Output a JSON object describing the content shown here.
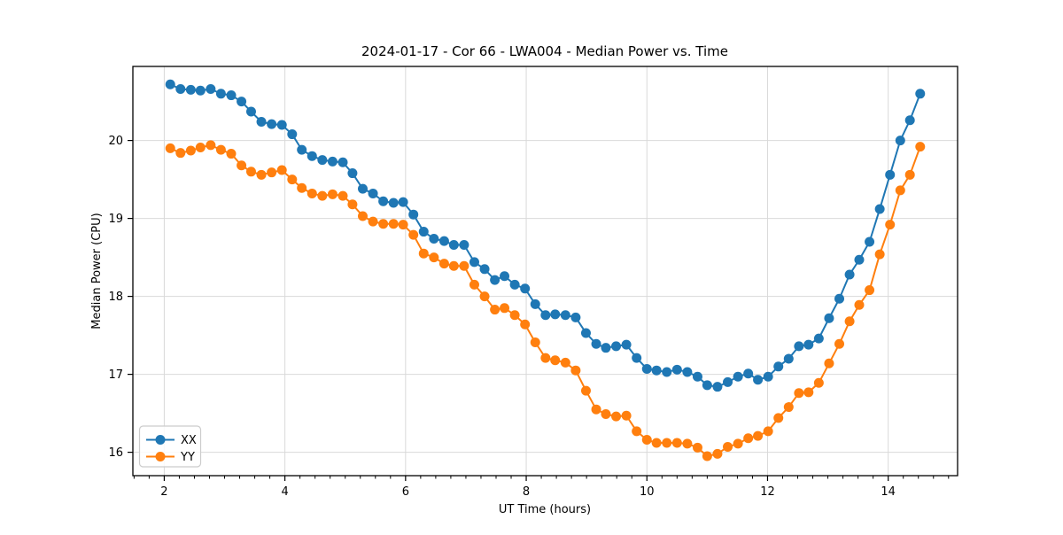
{
  "page": {
    "background": "#ffffff"
  },
  "chart_data": {
    "type": "line",
    "title": "2024-01-17 - Cor 66 - LWA004 - Median Power vs. Time",
    "xlabel": "UT Time (hours)",
    "ylabel": "Median Power (CPU)",
    "xlim": [
      1.48,
      15.15
    ],
    "ylim": [
      15.7,
      20.95
    ],
    "x_ticks": [
      2,
      4,
      6,
      8,
      10,
      12,
      14
    ],
    "x_minor_tick_step": 0.25,
    "y_ticks": [
      16,
      17,
      18,
      19,
      20
    ],
    "grid": true,
    "legend_position": "lower left",
    "marker": "circle",
    "x": [
      2.1,
      2.27,
      2.44,
      2.6,
      2.77,
      2.94,
      3.11,
      3.28,
      3.44,
      3.61,
      3.78,
      3.95,
      4.12,
      4.28,
      4.45,
      4.62,
      4.79,
      4.96,
      5.12,
      5.29,
      5.46,
      5.63,
      5.8,
      5.96,
      6.13,
      6.3,
      6.47,
      6.64,
      6.8,
      6.97,
      7.14,
      7.31,
      7.48,
      7.64,
      7.81,
      7.98,
      8.15,
      8.32,
      8.48,
      8.65,
      8.82,
      8.99,
      9.16,
      9.32,
      9.49,
      9.66,
      9.83,
      10.0,
      10.16,
      10.33,
      10.5,
      10.67,
      10.84,
      11.0,
      11.17,
      11.34,
      11.51,
      11.68,
      11.84,
      12.01,
      12.18,
      12.35,
      12.52,
      12.68,
      12.85,
      13.02,
      13.19,
      13.36,
      13.52,
      13.69,
      13.86,
      14.03,
      14.2,
      14.36,
      14.53
    ],
    "series": [
      {
        "name": "XX",
        "color": "#1f77b4",
        "values": [
          20.72,
          20.66,
          20.65,
          20.64,
          20.66,
          20.6,
          20.58,
          20.5,
          20.37,
          20.24,
          20.21,
          20.2,
          20.08,
          19.88,
          19.8,
          19.75,
          19.73,
          19.72,
          19.58,
          19.38,
          19.32,
          19.22,
          19.2,
          19.21,
          19.05,
          18.83,
          18.74,
          18.71,
          18.66,
          18.66,
          18.44,
          18.35,
          18.21,
          18.26,
          18.15,
          18.1,
          17.9,
          17.76,
          17.77,
          17.76,
          17.73,
          17.53,
          17.39,
          17.34,
          17.36,
          17.38,
          17.21,
          17.07,
          17.05,
          17.03,
          17.06,
          17.03,
          16.97,
          16.86,
          16.84,
          16.9,
          16.97,
          17.01,
          16.93,
          16.97,
          17.1,
          17.2,
          17.36,
          17.38,
          17.46,
          17.72,
          17.97,
          18.28,
          18.47,
          18.7,
          19.12,
          19.56,
          20.0,
          20.26,
          20.6
        ]
      },
      {
        "name": "YY",
        "color": "#ff7f0e",
        "values": [
          19.9,
          19.84,
          19.87,
          19.91,
          19.94,
          19.88,
          19.83,
          19.68,
          19.6,
          19.56,
          19.59,
          19.62,
          19.5,
          19.39,
          19.32,
          19.29,
          19.31,
          19.29,
          19.18,
          19.03,
          18.96,
          18.93,
          18.93,
          18.92,
          18.79,
          18.55,
          18.5,
          18.42,
          18.39,
          18.39,
          18.15,
          18.0,
          17.83,
          17.85,
          17.76,
          17.64,
          17.41,
          17.21,
          17.18,
          17.15,
          17.05,
          16.79,
          16.55,
          16.49,
          16.46,
          16.47,
          16.27,
          16.16,
          16.12,
          16.12,
          16.12,
          16.11,
          16.06,
          15.95,
          15.98,
          16.07,
          16.11,
          16.18,
          16.21,
          16.27,
          16.44,
          16.58,
          16.76,
          16.77,
          16.89,
          17.14,
          17.39,
          17.68,
          17.89,
          18.08,
          18.54,
          18.92,
          19.36,
          19.56,
          19.92
        ]
      }
    ],
    "style": {
      "grid_color": "#d9d9d9",
      "spine_color": "#000000",
      "marker_radius": 5.5,
      "line_width": 2,
      "legend_border_color": "#cccccc"
    }
  }
}
